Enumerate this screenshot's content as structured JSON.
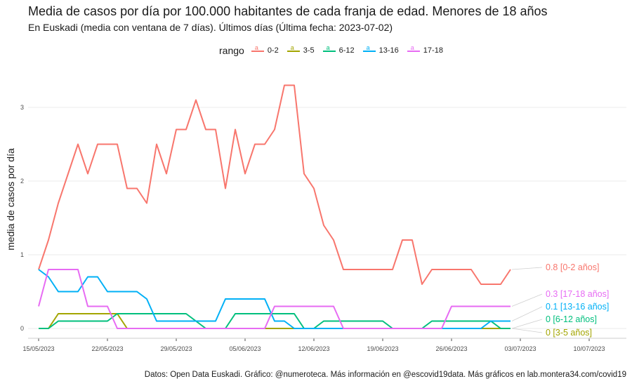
{
  "chart_data": {
    "type": "line",
    "title": "Media de casos por día por 100.000 habitantes de cada franja de edad. Menores de 18 años",
    "subtitle": "En Euskadi (media con ventana de 7 días). Últimos días  (Última fecha: 2023-07-02)",
    "caption": "Datos: Open Data Euskadi. Gráfico: @numeroteca. Más información en @escovid19data.  Más gráficos en lab.montera34.com/covid19",
    "ylabel": "media de casos por día",
    "legend_title": "rango",
    "legend_position": "top",
    "grid": true,
    "ylim": [
      0,
      3.4
    ],
    "x_ticks": [
      "15/05/2023",
      "22/05/2023",
      "29/05/2023",
      "05/06/2023",
      "12/06/2023",
      "19/06/2023",
      "26/06/2023",
      "03/07/2023",
      "10/07/2023"
    ],
    "y_ticks": [
      "0",
      "1",
      "2",
      "3"
    ],
    "x_start": "2023-05-15",
    "series": [
      {
        "name": "0-2",
        "end_label": "0.8 [0-2 años]",
        "color": "#f8766d",
        "values": [
          0.8,
          1.2,
          1.7,
          2.1,
          2.5,
          2.1,
          2.5,
          2.5,
          2.5,
          1.9,
          1.9,
          1.7,
          2.5,
          2.1,
          2.7,
          2.7,
          3.1,
          2.7,
          2.7,
          1.9,
          2.7,
          2.1,
          2.5,
          2.5,
          2.7,
          3.3,
          3.3,
          2.1,
          1.9,
          1.4,
          1.2,
          0.8,
          0.8,
          0.8,
          0.8,
          0.8,
          0.8,
          1.2,
          1.2,
          0.6,
          0.8,
          0.8,
          0.8,
          0.8,
          0.8,
          0.6,
          0.6,
          0.6,
          0.8
        ]
      },
      {
        "name": "3-5",
        "end_label": "0 [3-5 años]",
        "color": "#a3a500",
        "values": [
          0,
          0,
          0.2,
          0.2,
          0.2,
          0.2,
          0.2,
          0.2,
          0.2,
          0,
          0,
          0,
          0,
          0,
          0,
          0,
          0,
          0,
          0,
          0,
          0,
          0,
          0,
          0,
          0,
          0,
          0,
          0,
          0,
          0,
          0,
          0,
          0,
          0,
          0,
          0,
          0,
          0,
          0,
          0,
          0,
          0,
          0,
          0,
          0,
          0,
          0,
          0,
          0
        ]
      },
      {
        "name": "6-12",
        "end_label": "0 [6-12 años]",
        "color": "#00bf7d",
        "values": [
          0,
          0,
          0.1,
          0.1,
          0.1,
          0.1,
          0.1,
          0.1,
          0.2,
          0.2,
          0.2,
          0.2,
          0.2,
          0.2,
          0.2,
          0.2,
          0.1,
          0,
          0,
          0,
          0.2,
          0.2,
          0.2,
          0.2,
          0.2,
          0.2,
          0.2,
          0,
          0,
          0.1,
          0.1,
          0.1,
          0.1,
          0.1,
          0.1,
          0.1,
          0,
          0,
          0,
          0,
          0.1,
          0.1,
          0.1,
          0.1,
          0.1,
          0.1,
          0.1,
          0,
          0
        ]
      },
      {
        "name": "13-16",
        "end_label": "0.1 [13-16 años]",
        "color": "#00b0f6",
        "values": [
          0.8,
          0.7,
          0.5,
          0.5,
          0.5,
          0.7,
          0.7,
          0.5,
          0.5,
          0.5,
          0.5,
          0.4,
          0.1,
          0.1,
          0.1,
          0.1,
          0.1,
          0.1,
          0.1,
          0.4,
          0.4,
          0.4,
          0.4,
          0.4,
          0.1,
          0.1,
          0,
          0,
          0,
          0,
          0,
          0,
          0,
          0,
          0,
          0,
          0,
          0,
          0,
          0,
          0,
          0,
          0,
          0,
          0,
          0,
          0.1,
          0.1,
          0.1
        ]
      },
      {
        "name": "17-18",
        "end_label": "0.3 [17-18 años]",
        "color": "#e76bf3",
        "values": [
          0.3,
          0.8,
          0.8,
          0.8,
          0.8,
          0.3,
          0.3,
          0.3,
          0,
          0,
          0,
          0,
          0,
          0,
          0,
          0,
          0,
          0,
          0,
          0,
          0,
          0,
          0,
          0,
          0.3,
          0.3,
          0.3,
          0.3,
          0.3,
          0.3,
          0.3,
          0,
          0,
          0,
          0,
          0,
          0,
          0,
          0,
          0,
          0,
          0,
          0.3,
          0.3,
          0.3,
          0.3,
          0.3,
          0.3,
          0.3
        ]
      }
    ]
  }
}
